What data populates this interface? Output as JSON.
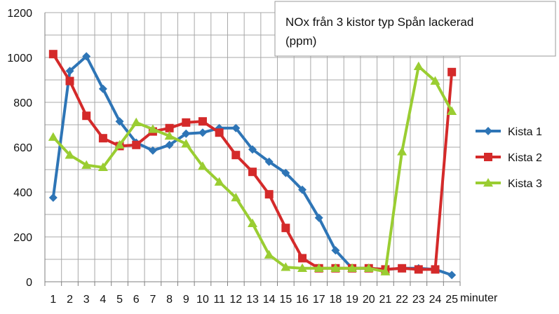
{
  "chart_data": {
    "type": "line",
    "title_lines": [
      "NOx från 3 kistor typ Spån lackerad",
      "(ppm)"
    ],
    "xlabel": "minuter",
    "ylabel": "",
    "x": [
      1,
      2,
      3,
      4,
      5,
      6,
      7,
      8,
      9,
      10,
      11,
      12,
      13,
      14,
      15,
      16,
      17,
      18,
      19,
      20,
      21,
      22,
      23,
      24,
      25
    ],
    "xlim": [
      0.5,
      25.5
    ],
    "ylim": [
      0,
      1200
    ],
    "yticks": [
      0,
      200,
      400,
      600,
      800,
      1000,
      1200
    ],
    "grid": true,
    "legend_position": "right",
    "series": [
      {
        "name": "Kista 1",
        "color": "#2e75b6",
        "marker": "diamond",
        "values": [
          375,
          940,
          1005,
          860,
          715,
          620,
          585,
          610,
          660,
          665,
          685,
          685,
          590,
          535,
          485,
          410,
          285,
          140,
          60,
          60,
          55,
          60,
          60,
          55,
          30
        ]
      },
      {
        "name": "Kista 2",
        "color": "#d42a2a",
        "marker": "square",
        "values": [
          1015,
          895,
          740,
          640,
          605,
          610,
          670,
          685,
          710,
          715,
          665,
          565,
          490,
          390,
          240,
          105,
          60,
          60,
          60,
          60,
          55,
          60,
          55,
          55,
          935
        ]
      },
      {
        "name": "Kista 3",
        "color": "#9acd32",
        "marker": "triangle",
        "values": [
          645,
          565,
          520,
          510,
          610,
          710,
          680,
          650,
          615,
          515,
          445,
          375,
          260,
          120,
          65,
          60,
          60,
          60,
          60,
          60,
          45,
          580,
          960,
          895,
          760
        ]
      }
    ]
  }
}
